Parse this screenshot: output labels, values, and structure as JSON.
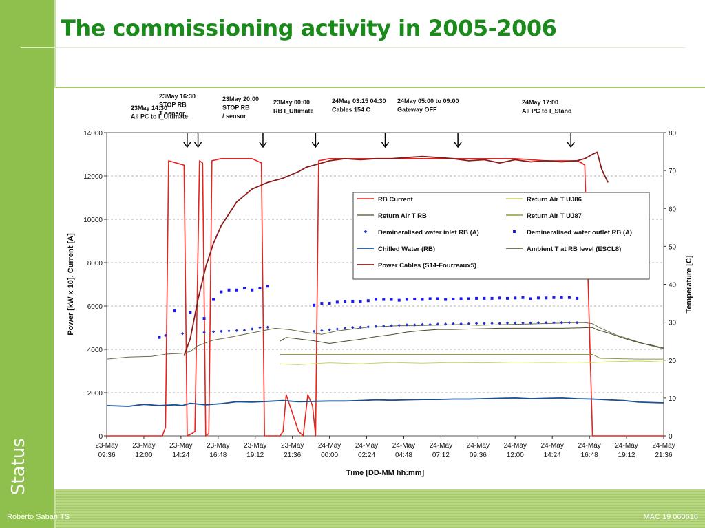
{
  "slide": {
    "title": "The commissioning activity in 2005-2006",
    "status_label": "Status",
    "footer_left": "Roberto Saban TS",
    "footer_right": "MAC 19  060616"
  },
  "chart_data": {
    "type": "line",
    "xlabel": "Time [DD-MM hh:mm]",
    "ylabel_left": "Power [kW x 10], Current [A]",
    "ylabel_right": "Temperature [C]",
    "ylim_left": [
      0,
      14000
    ],
    "ylim_right": [
      0,
      80
    ],
    "yticks_left": [
      "0",
      "2000",
      "4000",
      "6000",
      "8000",
      "10000",
      "12000",
      "14000"
    ],
    "yticks_right": [
      "0",
      "10",
      "20",
      "30",
      "40",
      "50",
      "60",
      "70",
      "80"
    ],
    "xticks": [
      {
        "day": "23-May",
        "time": "09:36"
      },
      {
        "day": "23-May",
        "time": "12:00"
      },
      {
        "day": "23-May",
        "time": "14:24"
      },
      {
        "day": "23-May",
        "time": "16:48"
      },
      {
        "day": "23-May",
        "time": "19:12"
      },
      {
        "day": "23-May",
        "time": "21:36"
      },
      {
        "day": "24-May",
        "time": "00:00"
      },
      {
        "day": "24-May",
        "time": "02:24"
      },
      {
        "day": "24-May",
        "time": "04:48"
      },
      {
        "day": "24-May",
        "time": "07:12"
      },
      {
        "day": "24-May",
        "time": "09:36"
      },
      {
        "day": "24-May",
        "time": "12:00"
      },
      {
        "day": "24-May",
        "time": "14:24"
      },
      {
        "day": "24-May",
        "time": "16:48"
      },
      {
        "day": "24-May",
        "time": "19:12"
      },
      {
        "day": "24-May",
        "time": "21:36"
      }
    ],
    "grid": true,
    "legend_position": "upper-right",
    "annotations": [
      {
        "x": 14.8,
        "lines": [
          "23May 14:30",
          "All PC to I_Ultimate"
        ],
        "bold_italic_first": false
      },
      {
        "x": 16.8,
        "lines": [
          "23May 16:30",
          "STOP RB",
          "T sensor"
        ]
      },
      {
        "x": 20.8,
        "lines": [
          "23May 20:00",
          "STOP RB",
          "/ sensor"
        ]
      },
      {
        "x": 23.8,
        "lines": [
          "23May 00:00",
          "RB I_Ultimate"
        ]
      },
      {
        "x": 28.3,
        "lines": [
          "24May 03:15 04:30",
          "Cables 154 C"
        ]
      },
      {
        "x": 32.8,
        "lines": [
          "24May 05:00 to 09:00",
          "Gateway OFF"
        ]
      },
      {
        "x": 40.5,
        "lines": [
          "24May 17:00",
          "All PC to I_Stand"
        ]
      }
    ],
    "arrow_x": [
      14.8,
      15.5,
      19.7,
      23.1,
      27.6,
      32.3,
      39.6
    ],
    "series": [
      {
        "name": "RB Current",
        "axis": "left",
        "color": "#e8231c",
        "width": 1.6,
        "style": "line",
        "x": [
          9.6,
          13.2,
          13.4,
          13.6,
          14.6,
          14.8,
          15.1,
          15.3,
          15.6,
          15.8,
          16.0,
          16.2,
          16.4,
          17.0,
          18.0,
          19.0,
          19.6,
          19.8,
          20.0,
          20.8,
          21.0,
          21.2,
          22.0,
          22.3,
          22.6,
          22.9,
          23.1,
          23.3,
          24.0,
          26.0,
          28.0,
          30.0,
          32.0,
          34.0,
          36.0,
          38.0,
          40.0,
          40.3,
          40.5,
          41.0,
          41.3,
          41.8,
          44.0,
          45.6
        ],
        "y": [
          0,
          0,
          400,
          12700,
          12500,
          0,
          100,
          200,
          12700,
          12600,
          0,
          100,
          12700,
          12800,
          12800,
          12800,
          12600,
          0,
          0,
          0,
          200,
          1900,
          200,
          0,
          1900,
          1400,
          0,
          12700,
          12800,
          12800,
          12800,
          12800,
          12800,
          12800,
          12800,
          12700,
          12700,
          12600,
          12500,
          0,
          0,
          0,
          0,
          0
        ]
      },
      {
        "name": "Power Cables (S14-Fourreaux5)",
        "axis": "left",
        "color": "#8b1a1a",
        "width": 1.8,
        "style": "line",
        "x": [
          14.6,
          15.0,
          15.5,
          16.0,
          16.5,
          17.0,
          18.0,
          19.0,
          20.0,
          21.0,
          22.0,
          22.5,
          23.0,
          23.5,
          24.0,
          25.0,
          26.0,
          27.0,
          28.0,
          29.0,
          30.0,
          31.0,
          32.0,
          33.0,
          34.0,
          35.0,
          36.0,
          37.0,
          38.0,
          39.0,
          40.0,
          40.5,
          41.0,
          41.3,
          41.6,
          42.0
        ],
        "y": [
          3700,
          4500,
          6300,
          7800,
          8900,
          9700,
          10800,
          11400,
          11700,
          11900,
          12200,
          12400,
          12500,
          12600,
          12700,
          12800,
          12750,
          12800,
          12800,
          12850,
          12900,
          12850,
          12800,
          12700,
          12750,
          12600,
          12750,
          12650,
          12700,
          12650,
          12700,
          12800,
          13000,
          13100,
          12300,
          11700
        ]
      },
      {
        "name": "Return Air T RB",
        "axis": "right",
        "color": "#6b6b4a",
        "width": 1.0,
        "style": "line",
        "x": [
          9.6,
          11.0,
          12.5,
          13.5,
          14.5,
          15.0,
          15.5,
          16.5,
          17.5,
          18.5,
          19.5,
          20.5,
          21.5,
          22.5,
          23.5,
          24.5,
          25.5,
          26.5,
          27.5,
          28.5,
          29.5,
          30.5,
          31.5,
          32.5,
          33.5,
          34.5,
          35.5,
          36.5,
          37.5,
          38.5,
          39.5,
          40.5,
          41.0,
          41.5,
          42.5,
          43.5,
          44.5,
          45.6
        ],
        "y": [
          20.3,
          20.8,
          21.0,
          21.6,
          21.8,
          22.3,
          23.8,
          25.3,
          26.0,
          26.8,
          27.6,
          28.4,
          28.0,
          27.3,
          26.8,
          27.7,
          28.2,
          28.7,
          28.9,
          29.1,
          29.1,
          29.2,
          29.3,
          29.4,
          29.2,
          29.3,
          29.4,
          29.5,
          29.6,
          29.7,
          29.9,
          29.9,
          29.6,
          28.5,
          26.7,
          25.4,
          24.1,
          23.0
        ]
      },
      {
        "name": "Return Air T UJ86",
        "axis": "right",
        "color": "#c8d455",
        "width": 1.0,
        "style": "line",
        "x": [
          20.8,
          22.0,
          24.0,
          26.0,
          28.0,
          30.0,
          32.0,
          34.0,
          36.0,
          38.0,
          40.0,
          41.0,
          42.0,
          44.0,
          45.6
        ],
        "y": [
          19.0,
          18.8,
          19.3,
          19.0,
          19.4,
          19.2,
          19.4,
          19.3,
          19.5,
          19.4,
          19.5,
          19.4,
          19.6,
          19.8,
          19.5
        ]
      },
      {
        "name": "Return Air T UJ87",
        "axis": "right",
        "color": "#8e9a3a",
        "width": 1.0,
        "style": "line",
        "x": [
          20.8,
          22.0,
          24.0,
          26.0,
          28.0,
          30.0,
          32.0,
          34.0,
          36.0,
          38.0,
          40.0,
          41.0,
          41.5,
          44.0,
          45.6
        ],
        "y": [
          21.5,
          21.5,
          21.5,
          21.5,
          21.5,
          21.5,
          21.5,
          21.5,
          21.5,
          21.5,
          21.5,
          21.5,
          20.5,
          20.3,
          20.3
        ]
      },
      {
        "name": "Ambient T at RB level (ESCL8)",
        "axis": "right",
        "color": "#4a4a2a",
        "width": 1.0,
        "style": "line",
        "x": [
          20.8,
          21.2,
          22.0,
          23.0,
          24.0,
          25.0,
          26.0,
          27.0,
          28.0,
          29.0,
          30.0,
          31.0,
          32.0,
          33.0,
          34.0,
          35.0,
          36.0,
          37.0,
          38.0,
          39.0,
          40.0,
          41.0,
          41.3,
          42.0,
          43.0,
          44.0,
          45.0,
          45.6
        ],
        "y": [
          25.0,
          26.0,
          25.6,
          25.1,
          24.4,
          25.0,
          25.5,
          26.2,
          26.7,
          27.4,
          27.8,
          28.1,
          28.1,
          28.2,
          28.3,
          28.4,
          28.4,
          28.4,
          28.4,
          28.4,
          28.5,
          28.6,
          28.0,
          27.2,
          25.8,
          24.6,
          23.8,
          23.2
        ]
      },
      {
        "name": "Chilled Water (RB)",
        "axis": "right",
        "color": "#1d4f8f",
        "width": 1.8,
        "style": "line",
        "x": [
          9.6,
          11.0,
          12.0,
          13.0,
          14.0,
          14.5,
          15.0,
          16.0,
          17.0,
          18.0,
          19.0,
          20.0,
          21.0,
          22.0,
          23.0,
          24.0,
          25.0,
          26.0,
          27.0,
          28.0,
          29.0,
          30.0,
          31.0,
          32.0,
          33.0,
          34.0,
          35.0,
          36.0,
          37.0,
          38.0,
          39.0,
          40.0,
          41.0,
          42.0,
          43.0,
          44.0,
          45.6
        ],
        "y": [
          8.0,
          7.8,
          8.3,
          8.0,
          8.2,
          8.0,
          8.6,
          8.2,
          8.5,
          9.0,
          8.9,
          9.1,
          9.3,
          9.0,
          9.1,
          9.2,
          9.2,
          9.3,
          9.5,
          9.4,
          9.5,
          9.6,
          9.6,
          9.7,
          9.7,
          9.8,
          9.9,
          10.0,
          9.8,
          9.9,
          10.0,
          9.8,
          9.7,
          9.5,
          9.3,
          8.9,
          8.7
        ]
      },
      {
        "name": "Demineralised water inlet RB (A)",
        "axis": "right",
        "color": "#2233cc",
        "style": "diamond",
        "x": [
          13.0,
          13.4,
          14.5,
          15.9,
          16.5,
          17.0,
          17.5,
          18.0,
          18.5,
          19.0,
          19.5,
          20.0,
          23.0,
          23.5,
          24.0,
          24.5,
          25.0,
          25.5,
          26.0,
          26.5,
          27.0,
          27.5,
          28.0,
          28.5,
          29.0,
          29.5,
          30.0,
          30.5,
          31.0,
          31.5,
          32.0,
          32.5,
          33.0,
          33.5,
          34.0,
          34.5,
          35.0,
          35.5,
          36.0,
          36.5,
          37.0,
          37.5,
          38.0,
          38.5,
          39.0,
          39.5,
          40.0
        ],
        "y": [
          26.0,
          26.5,
          27.0,
          27.3,
          27.5,
          27.6,
          27.7,
          27.8,
          27.9,
          28.2,
          28.6,
          28.7,
          27.6,
          27.8,
          28.0,
          28.2,
          28.4,
          28.6,
          28.7,
          28.8,
          28.9,
          29.0,
          29.1,
          29.2,
          29.3,
          29.3,
          29.4,
          29.4,
          29.5,
          29.5,
          29.6,
          29.6,
          29.6,
          29.7,
          29.7,
          29.7,
          29.7,
          29.8,
          29.8,
          29.8,
          29.8,
          29.9,
          29.9,
          29.9,
          29.9,
          29.9,
          29.9
        ]
      },
      {
        "name": "Demineralised water outlet RB (A)",
        "axis": "right",
        "color": "#1a1aee",
        "style": "square",
        "x": [
          13.0,
          14.0,
          15.0,
          15.9,
          16.5,
          17.0,
          17.5,
          18.0,
          18.5,
          19.0,
          19.5,
          20.0,
          23.0,
          23.5,
          24.0,
          24.5,
          25.0,
          25.5,
          26.0,
          26.5,
          27.0,
          27.5,
          28.0,
          28.5,
          29.0,
          29.5,
          30.0,
          30.5,
          31.0,
          31.5,
          32.0,
          32.5,
          33.0,
          33.5,
          34.0,
          34.5,
          35.0,
          35.5,
          36.0,
          36.5,
          37.0,
          37.5,
          38.0,
          38.5,
          39.0,
          39.5,
          40.0
        ],
        "y": [
          26.0,
          33.0,
          32.5,
          31.0,
          36.0,
          38.0,
          38.5,
          38.5,
          39.0,
          38.5,
          39.0,
          39.5,
          34.5,
          35.0,
          35.0,
          35.3,
          35.5,
          35.5,
          35.5,
          35.7,
          36.0,
          36.0,
          36.0,
          35.8,
          36.0,
          36.1,
          36.0,
          36.2,
          36.2,
          36.0,
          36.1,
          36.2,
          36.2,
          36.3,
          36.3,
          36.3,
          36.4,
          36.3,
          36.4,
          36.5,
          36.2,
          36.4,
          36.4,
          36.5,
          36.5,
          36.5,
          36.3
        ]
      }
    ],
    "legend": [
      {
        "label": "RB Current",
        "series": "RB Current"
      },
      {
        "label": "Return Air T UJ86",
        "series": "Return Air T UJ86"
      },
      {
        "label": "Return Air T RB",
        "series": "Return Air T RB"
      },
      {
        "label": "Return Air T UJ87",
        "series": "Return Air T UJ87"
      },
      {
        "label": "Demineralised water inlet RB (A)",
        "series": "Demineralised water inlet RB (A)"
      },
      {
        "label": "Demineralised water outlet RB (A)",
        "series": "Demineralised water outlet RB (A)"
      },
      {
        "label": "Chilled Water (RB)",
        "series": "Chilled Water (RB)"
      },
      {
        "label": "Ambient T at RB level (ESCL8)",
        "series": "Ambient T at RB level (ESCL8)"
      },
      {
        "label": "Power Cables (S14-Fourreaux5)",
        "series": "Power Cables (S14-Fourreaux5)"
      }
    ]
  }
}
